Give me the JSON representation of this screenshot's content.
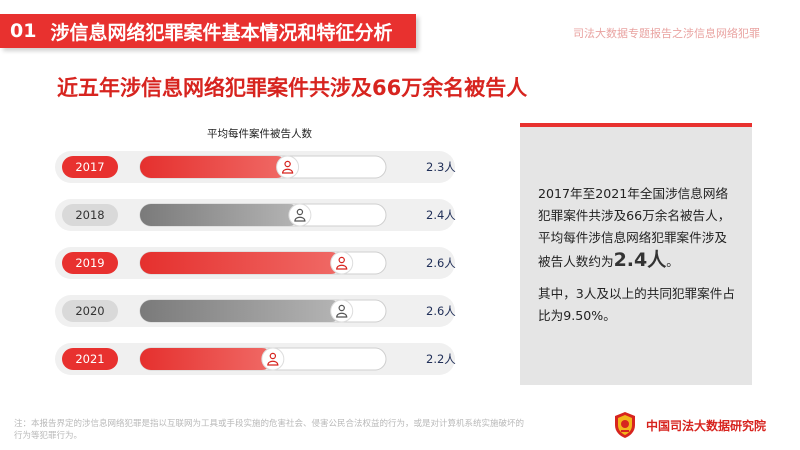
{
  "header": {
    "number": "01",
    "title": "涉信息网络犯罪案件基本情况和特征分析"
  },
  "top_right": "司法大数据专题报告之涉信息网络犯罪",
  "subtitle": "近五年涉信息网络犯罪案件共涉及66万余名被告人",
  "chart_data": {
    "type": "bar",
    "title": "平均每件案件被告人数",
    "categories": [
      "2017",
      "2018",
      "2019",
      "2020",
      "2021"
    ],
    "values": [
      2.3,
      2.4,
      2.6,
      2.6,
      2.2
    ],
    "value_labels": [
      "2.3人",
      "2.4人",
      "2.6人",
      "2.6人",
      "2.2人"
    ],
    "fill_fraction": [
      0.6,
      0.65,
      0.82,
      0.82,
      0.54
    ],
    "highlight": [
      true,
      false,
      true,
      false,
      true
    ],
    "colors": {
      "highlight": "#e8312f",
      "normal": "#8f8f8f",
      "value": "#1f2e57"
    }
  },
  "panel": {
    "p1_text": "2017年至2021年全国涉信息网络犯罪案件共涉及66万余名被告人，平均每件涉信息网络犯罪案件涉及被告人数约为",
    "p1_big": "2.4人",
    "p1_tail": "。",
    "p2_text": "其中，3人及以上的共同犯罪案件占比为9.50%。"
  },
  "footnote": "注：本报告界定的涉信息网络犯罪是指以互联网为工具或手段实施的危害社会、侵害公民合法权益的行为，或是对计算机系统实施破坏的行为等犯罪行为。",
  "org": {
    "name": "中国司法大数据研究院",
    "emblem": "court-emblem-icon"
  },
  "colors": {
    "accent": "#e8312f",
    "panel_bg": "#e5e5e5"
  }
}
